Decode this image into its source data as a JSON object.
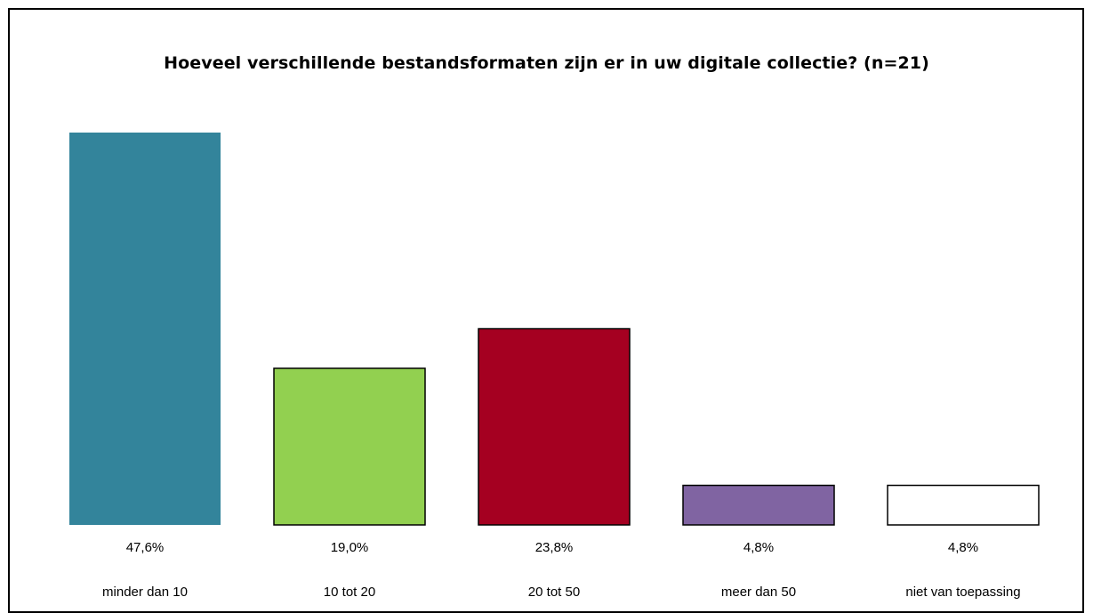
{
  "chart_data": {
    "type": "bar",
    "title": "Hoeveel verschillende bestandsformaten zijn er in uw digitale collectie? (n=21)",
    "xlabel": "",
    "ylabel": "",
    "ylim": [
      0,
      47.6
    ],
    "grid": false,
    "legend": "none",
    "categories": [
      "minder dan 10",
      "10 tot 20",
      "20 tot 50",
      "meer dan 50",
      "niet van toepassing"
    ],
    "values": [
      47.6,
      19.0,
      23.8,
      4.8,
      4.8
    ],
    "value_labels": [
      "47,6%",
      "19,0%",
      "23,8%",
      "4,8%",
      "4,8%"
    ],
    "colors": [
      "#33849b",
      "#92d050",
      "#a50021",
      "#8064a2",
      "#ffffff"
    ]
  }
}
